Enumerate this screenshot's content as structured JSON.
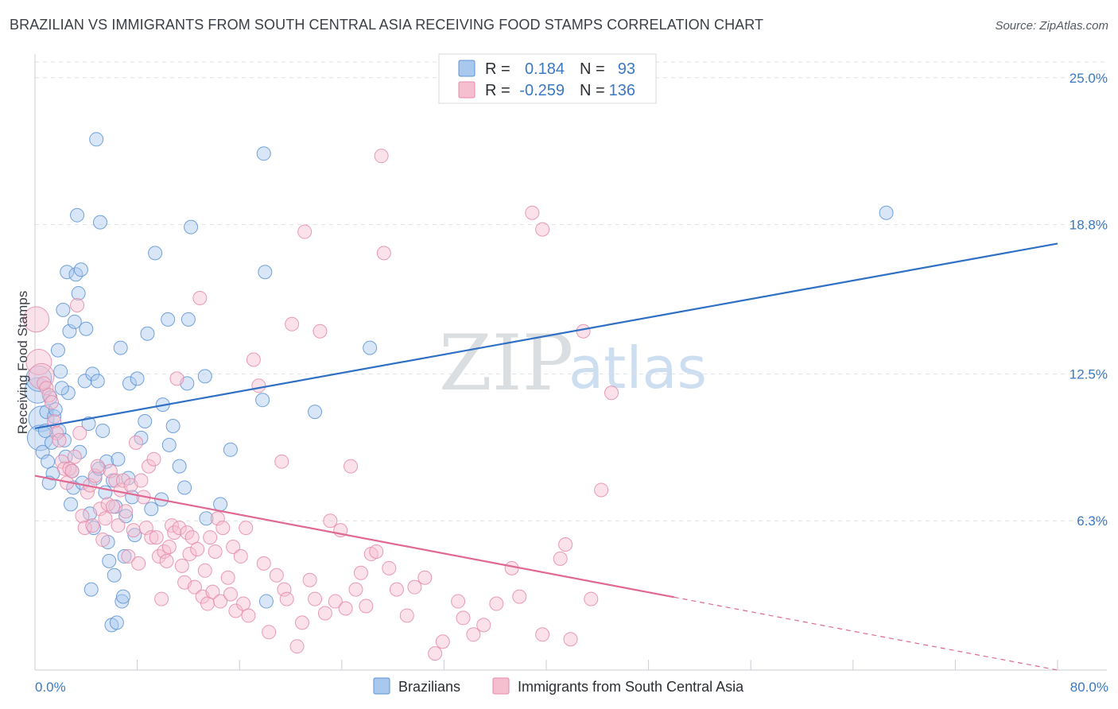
{
  "title": "BRAZILIAN VS IMMIGRANTS FROM SOUTH CENTRAL ASIA RECEIVING FOOD STAMPS CORRELATION CHART",
  "source": "Source: ZipAtlas.com",
  "watermark": {
    "zip": "ZIP",
    "atlas": "atlas"
  },
  "legend": {
    "r_label": "R =",
    "n_label": "N =",
    "rows": [
      {
        "r": "0.184",
        "n": "93"
      },
      {
        "r": "-0.259",
        "n": "136"
      }
    ]
  },
  "bottom_legend": [
    "Brazilians",
    "Immigrants from South Central Asia"
  ],
  "colors": {
    "blue_fill": "#a9c8ee",
    "blue_stroke": "#5c93d3",
    "blue_line": "#2f6fc4",
    "pink_fill": "#f6bfd0",
    "pink_stroke": "#e48aa8",
    "pink_line": "#e06892",
    "grid": "#dde1e6",
    "tick_text": "#3b78c4"
  },
  "chart_data": {
    "type": "scatter",
    "title": "BRAZILIAN VS IMMIGRANTS FROM SOUTH CENTRAL ASIA RECEIVING FOOD STAMPS CORRELATION CHART",
    "xlabel": "",
    "ylabel": "Receiving Food Stamps",
    "xlim": [
      0,
      80
    ],
    "ylim": [
      0,
      26
    ],
    "x_tick_labels": [
      "0.0%",
      "80.0%"
    ],
    "y_tick_values": [
      6.3,
      12.5,
      18.8,
      25.0
    ],
    "y_tick_labels": [
      "6.3%",
      "12.5%",
      "18.8%",
      "25.0%"
    ],
    "grid": true,
    "legend_position": "top-center",
    "series": [
      {
        "name": "Brazilians",
        "r": 0.184,
        "n": 93,
        "trend": {
          "x": [
            0,
            80
          ],
          "y": [
            10.2,
            18.0
          ],
          "dashed_from": null
        },
        "points": [
          [
            0.2,
            11.8
          ],
          [
            0.3,
            12.3
          ],
          [
            0.5,
            10.6
          ],
          [
            0.4,
            9.8
          ],
          [
            0.6,
            9.2
          ],
          [
            0.8,
            10.1
          ],
          [
            1.0,
            8.8
          ],
          [
            0.9,
            10.9
          ],
          [
            1.2,
            11.5
          ],
          [
            1.3,
            9.6
          ],
          [
            1.5,
            10.7
          ],
          [
            1.4,
            8.3
          ],
          [
            1.6,
            11.0
          ],
          [
            1.8,
            13.5
          ],
          [
            1.9,
            10.1
          ],
          [
            2.0,
            12.6
          ],
          [
            2.2,
            15.2
          ],
          [
            2.3,
            9.7
          ],
          [
            2.4,
            9.0
          ],
          [
            2.5,
            16.8
          ],
          [
            2.6,
            11.7
          ],
          [
            2.7,
            14.3
          ],
          [
            2.8,
            7.0
          ],
          [
            2.9,
            8.4
          ],
          [
            3.0,
            7.7
          ],
          [
            3.1,
            14.7
          ],
          [
            3.2,
            16.7
          ],
          [
            3.3,
            19.2
          ],
          [
            3.4,
            15.9
          ],
          [
            3.6,
            16.9
          ],
          [
            3.7,
            7.9
          ],
          [
            3.9,
            12.2
          ],
          [
            4.0,
            14.4
          ],
          [
            4.2,
            10.4
          ],
          [
            4.3,
            6.6
          ],
          [
            4.4,
            3.4
          ],
          [
            4.5,
            12.5
          ],
          [
            4.7,
            8.1
          ],
          [
            4.8,
            22.4
          ],
          [
            4.9,
            12.2
          ],
          [
            5.1,
            18.9
          ],
          [
            5.3,
            10.1
          ],
          [
            5.6,
            8.8
          ],
          [
            5.7,
            5.4
          ],
          [
            5.8,
            4.6
          ],
          [
            6.0,
            1.9
          ],
          [
            6.1,
            8.0
          ],
          [
            6.2,
            4.0
          ],
          [
            6.4,
            2.0
          ],
          [
            6.5,
            8.9
          ],
          [
            6.7,
            13.6
          ],
          [
            6.8,
            2.9
          ],
          [
            6.9,
            3.1
          ],
          [
            7.0,
            4.8
          ],
          [
            7.1,
            6.5
          ],
          [
            7.3,
            8.1
          ],
          [
            7.4,
            12.1
          ],
          [
            7.6,
            7.3
          ],
          [
            8.0,
            12.3
          ],
          [
            8.6,
            10.5
          ],
          [
            8.8,
            14.2
          ],
          [
            9.4,
            17.6
          ],
          [
            9.9,
            7.2
          ],
          [
            10.4,
            14.8
          ],
          [
            10.5,
            9.5
          ],
          [
            10.8,
            10.3
          ],
          [
            11.7,
            7.7
          ],
          [
            11.9,
            12.1
          ],
          [
            12.0,
            14.8
          ],
          [
            12.2,
            18.7
          ],
          [
            13.3,
            12.4
          ],
          [
            13.4,
            6.4
          ],
          [
            14.5,
            7.0
          ],
          [
            15.3,
            9.3
          ],
          [
            17.9,
            21.8
          ],
          [
            17.8,
            11.4
          ],
          [
            18.0,
            16.8
          ],
          [
            18.1,
            2.9
          ],
          [
            21.9,
            10.9
          ],
          [
            26.2,
            13.6
          ],
          [
            66.6,
            19.3
          ],
          [
            1.1,
            7.9
          ],
          [
            2.1,
            11.9
          ],
          [
            3.5,
            9.2
          ],
          [
            4.6,
            6.0
          ],
          [
            5.0,
            8.5
          ],
          [
            5.5,
            7.5
          ],
          [
            6.3,
            6.9
          ],
          [
            7.8,
            5.7
          ],
          [
            8.3,
            9.8
          ],
          [
            9.1,
            6.8
          ],
          [
            10.0,
            11.2
          ],
          [
            11.3,
            8.6
          ]
        ]
      },
      {
        "name": "Immigrants from South Central Asia",
        "r": -0.259,
        "n": 136,
        "trend": {
          "x": [
            0,
            80
          ],
          "y": [
            8.2,
            0.0
          ],
          "dashed_from": 50
        },
        "points": [
          [
            0.1,
            14.8
          ],
          [
            0.3,
            13.0
          ],
          [
            0.5,
            12.4
          ],
          [
            0.7,
            12.1
          ],
          [
            0.9,
            11.9
          ],
          [
            1.1,
            11.6
          ],
          [
            1.3,
            11.3
          ],
          [
            1.5,
            10.5
          ],
          [
            1.7,
            10.0
          ],
          [
            1.9,
            9.7
          ],
          [
            2.1,
            8.8
          ],
          [
            2.3,
            8.5
          ],
          [
            2.5,
            7.9
          ],
          [
            2.7,
            8.5
          ],
          [
            2.9,
            8.4
          ],
          [
            3.1,
            9.0
          ],
          [
            3.3,
            15.4
          ],
          [
            3.5,
            10.0
          ],
          [
            3.7,
            6.5
          ],
          [
            3.9,
            6.0
          ],
          [
            4.1,
            7.5
          ],
          [
            4.3,
            7.8
          ],
          [
            4.5,
            6.1
          ],
          [
            4.7,
            8.2
          ],
          [
            4.9,
            8.6
          ],
          [
            5.1,
            6.8
          ],
          [
            5.3,
            5.5
          ],
          [
            5.5,
            6.4
          ],
          [
            5.7,
            7.0
          ],
          [
            5.9,
            8.4
          ],
          [
            6.1,
            6.9
          ],
          [
            6.3,
            8.0
          ],
          [
            6.5,
            6.1
          ],
          [
            6.7,
            7.6
          ],
          [
            6.9,
            8.0
          ],
          [
            7.1,
            6.7
          ],
          [
            7.3,
            4.8
          ],
          [
            7.5,
            7.8
          ],
          [
            7.7,
            5.9
          ],
          [
            7.9,
            9.6
          ],
          [
            8.1,
            4.5
          ],
          [
            8.3,
            8.0
          ],
          [
            8.5,
            7.3
          ],
          [
            8.7,
            6.0
          ],
          [
            8.9,
            8.6
          ],
          [
            9.1,
            5.6
          ],
          [
            9.3,
            8.9
          ],
          [
            9.5,
            5.6
          ],
          [
            9.7,
            4.8
          ],
          [
            9.9,
            3.0
          ],
          [
            10.1,
            5.0
          ],
          [
            10.3,
            4.6
          ],
          [
            10.5,
            5.2
          ],
          [
            10.7,
            6.1
          ],
          [
            10.9,
            5.8
          ],
          [
            11.1,
            12.3
          ],
          [
            11.3,
            6.0
          ],
          [
            11.5,
            4.4
          ],
          [
            11.7,
            3.7
          ],
          [
            11.9,
            5.8
          ],
          [
            12.1,
            4.9
          ],
          [
            12.3,
            5.6
          ],
          [
            12.5,
            3.5
          ],
          [
            12.7,
            5.1
          ],
          [
            12.9,
            15.7
          ],
          [
            13.1,
            3.1
          ],
          [
            13.3,
            4.2
          ],
          [
            13.5,
            2.8
          ],
          [
            13.7,
            5.6
          ],
          [
            13.9,
            3.3
          ],
          [
            14.1,
            5.0
          ],
          [
            14.3,
            6.4
          ],
          [
            14.5,
            2.9
          ],
          [
            14.7,
            6.0
          ],
          [
            15.1,
            3.9
          ],
          [
            15.3,
            3.2
          ],
          [
            15.5,
            5.2
          ],
          [
            15.7,
            2.5
          ],
          [
            16.1,
            4.8
          ],
          [
            16.3,
            2.8
          ],
          [
            16.5,
            6.0
          ],
          [
            16.7,
            2.3
          ],
          [
            17.1,
            13.1
          ],
          [
            17.5,
            12.0
          ],
          [
            17.9,
            4.5
          ],
          [
            18.3,
            1.6
          ],
          [
            18.9,
            4.0
          ],
          [
            19.3,
            8.8
          ],
          [
            19.5,
            3.4
          ],
          [
            19.7,
            3.0
          ],
          [
            20.1,
            14.6
          ],
          [
            20.5,
            1.0
          ],
          [
            20.9,
            2.0
          ],
          [
            21.1,
            18.5
          ],
          [
            21.5,
            3.8
          ],
          [
            21.9,
            3.0
          ],
          [
            22.3,
            14.3
          ],
          [
            22.7,
            2.4
          ],
          [
            23.1,
            6.3
          ],
          [
            23.5,
            2.9
          ],
          [
            23.9,
            5.9
          ],
          [
            24.3,
            2.6
          ],
          [
            24.7,
            8.6
          ],
          [
            25.1,
            3.4
          ],
          [
            25.5,
            4.1
          ],
          [
            25.9,
            2.7
          ],
          [
            26.3,
            4.9
          ],
          [
            26.7,
            5.0
          ],
          [
            27.1,
            21.7
          ],
          [
            27.3,
            17.6
          ],
          [
            27.7,
            4.3
          ],
          [
            28.3,
            3.4
          ],
          [
            29.1,
            2.3
          ],
          [
            29.7,
            3.5
          ],
          [
            30.5,
            3.9
          ],
          [
            31.3,
            0.7
          ],
          [
            31.9,
            1.2
          ],
          [
            33.1,
            2.9
          ],
          [
            34.3,
            1.5
          ],
          [
            35.1,
            1.9
          ],
          [
            36.1,
            2.8
          ],
          [
            37.3,
            4.3
          ],
          [
            37.9,
            3.1
          ],
          [
            38.9,
            19.3
          ],
          [
            39.7,
            18.6
          ],
          [
            39.7,
            1.5
          ],
          [
            41.1,
            4.7
          ],
          [
            41.5,
            5.3
          ],
          [
            41.9,
            1.3
          ],
          [
            42.9,
            14.3
          ],
          [
            43.5,
            3.0
          ],
          [
            44.3,
            7.6
          ],
          [
            45.1,
            11.7
          ],
          [
            33.5,
            2.2
          ]
        ]
      }
    ]
  }
}
